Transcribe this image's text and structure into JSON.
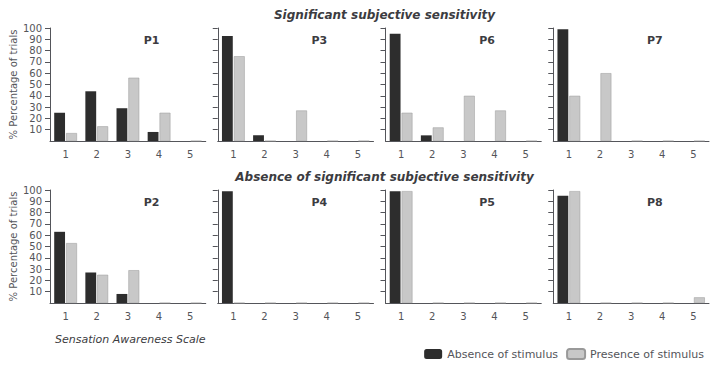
{
  "chart_data": [
    {
      "type": "bar",
      "title": "P1",
      "subtitle": "Significant subjective sensitivity",
      "ylabel": "% Percentage of trials",
      "categories": [
        "1",
        "2",
        "3",
        "4",
        "5"
      ],
      "series": [
        {
          "name": "Absence of stimulus",
          "color": "#2d2d2d",
          "values": [
            25,
            44,
            29,
            8,
            0
          ]
        },
        {
          "name": "Presence of stimulus",
          "color": "#c8c8c8",
          "values": [
            7,
            13,
            56,
            25,
            0
          ]
        }
      ],
      "ylim": [
        0,
        100
      ],
      "yticks": [
        10,
        20,
        30,
        40,
        50,
        60,
        70,
        80,
        90,
        100
      ],
      "grid": false
    },
    {
      "type": "bar",
      "title": "P3",
      "categories": [
        "1",
        "2",
        "3",
        "4",
        "5"
      ],
      "series": [
        {
          "name": "Absence of stimulus",
          "color": "#2d2d2d",
          "values": [
            93,
            5,
            0,
            0,
            0
          ]
        },
        {
          "name": "Presence of stimulus",
          "color": "#c8c8c8",
          "values": [
            75,
            0,
            27,
            0,
            0
          ]
        }
      ],
      "ylim": [
        0,
        100
      ],
      "yticks": [
        10,
        20,
        30,
        40,
        50,
        60,
        70,
        80,
        90,
        100
      ],
      "grid": false,
      "tick_labels": "x"
    },
    {
      "type": "bar",
      "title": "P6",
      "categories": [
        "1",
        "2",
        "3",
        "4",
        "5"
      ],
      "series": [
        {
          "name": "Absence of stimulus",
          "color": "#2d2d2d",
          "values": [
            95,
            5,
            0,
            0,
            0
          ]
        },
        {
          "name": "Presence of stimulus",
          "color": "#c8c8c8",
          "values": [
            25,
            12,
            40,
            27,
            0
          ]
        }
      ],
      "ylim": [
        0,
        100
      ],
      "yticks": [
        10,
        20,
        30,
        40,
        50,
        60,
        70,
        80,
        90,
        100
      ],
      "grid": false,
      "tick_labels": "x"
    },
    {
      "type": "bar",
      "title": "P7",
      "categories": [
        "1",
        "2",
        "3",
        "4",
        "5"
      ],
      "series": [
        {
          "name": "Absence of stimulus",
          "color": "#2d2d2d",
          "values": [
            99,
            0,
            0,
            0,
            0
          ]
        },
        {
          "name": "Presence of stimulus",
          "color": "#c8c8c8",
          "values": [
            40,
            60,
            0,
            0,
            0
          ]
        }
      ],
      "ylim": [
        0,
        100
      ],
      "yticks": [
        10,
        20,
        30,
        40,
        50,
        60,
        70,
        80,
        90,
        100
      ],
      "grid": false,
      "tick_labels": "x"
    },
    {
      "type": "bar",
      "title": "P2",
      "subtitle": "Absence of significant subjective sensitivity",
      "ylabel": "% Percentage of trials",
      "xlabel": "Sensation Awareness Scale",
      "categories": [
        "1",
        "2",
        "3",
        "4",
        "5"
      ],
      "series": [
        {
          "name": "Absence of stimulus",
          "color": "#2d2d2d",
          "values": [
            63,
            27,
            8,
            0,
            0
          ]
        },
        {
          "name": "Presence of stimulus",
          "color": "#c8c8c8",
          "values": [
            53,
            25,
            29,
            0,
            0
          ]
        }
      ],
      "ylim": [
        0,
        100
      ],
      "yticks": [
        10,
        20,
        30,
        40,
        50,
        60,
        70,
        80,
        90,
        100
      ],
      "grid": false
    },
    {
      "type": "bar",
      "title": "P4",
      "categories": [
        "1",
        "2",
        "3",
        "4",
        "5"
      ],
      "series": [
        {
          "name": "Absence of stimulus",
          "color": "#2d2d2d",
          "values": [
            99,
            0,
            0,
            0,
            0
          ]
        },
        {
          "name": "Presence of stimulus",
          "color": "#c8c8c8",
          "values": [
            0,
            0,
            0,
            0,
            0
          ]
        }
      ],
      "ylim": [
        0,
        100
      ],
      "yticks": [
        10,
        20,
        30,
        40,
        50,
        60,
        70,
        80,
        90,
        100
      ],
      "grid": false,
      "tick_labels": "x"
    },
    {
      "type": "bar",
      "title": "P5",
      "categories": [
        "1",
        "2",
        "3",
        "4",
        "5"
      ],
      "series": [
        {
          "name": "Absence of stimulus",
          "color": "#2d2d2d",
          "values": [
            99,
            0,
            0,
            0,
            0
          ]
        },
        {
          "name": "Presence of stimulus",
          "color": "#c8c8c8",
          "values": [
            99,
            0,
            0,
            0,
            0
          ]
        }
      ],
      "ylim": [
        0,
        100
      ],
      "yticks": [
        10,
        20,
        30,
        40,
        50,
        60,
        70,
        80,
        90,
        100
      ],
      "grid": false,
      "tick_labels": "x"
    },
    {
      "type": "bar",
      "title": "P8",
      "categories": [
        "1",
        "2",
        "3",
        "4",
        "5"
      ],
      "series": [
        {
          "name": "Absence of stimulus",
          "color": "#2d2d2d",
          "values": [
            95,
            0,
            0,
            0,
            0
          ]
        },
        {
          "name": "Presence of stimulus",
          "color": "#c8c8c8",
          "values": [
            99,
            0,
            0,
            0,
            5
          ]
        }
      ],
      "ylim": [
        0,
        100
      ],
      "yticks": [
        10,
        20,
        30,
        40,
        50,
        60,
        70,
        80,
        90,
        100
      ],
      "grid": false,
      "tick_labels": "x",
      "legend": "lower right"
    }
  ]
}
